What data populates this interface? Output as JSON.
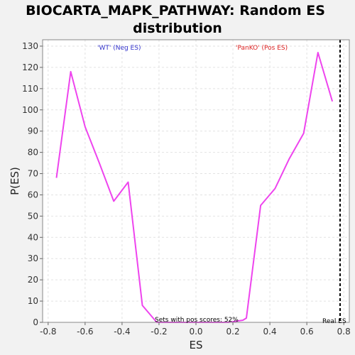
{
  "chart_data": {
    "type": "line",
    "title_line1": "BIOCARTA_MAPK_PATHWAY: Random ES",
    "title_line2": "distribution",
    "xlabel": "ES",
    "ylabel": "P(ES)",
    "xlim": [
      -0.83,
      0.83
    ],
    "ylim": [
      0,
      133
    ],
    "x_ticks": [
      -0.8,
      -0.6,
      -0.4,
      -0.2,
      0.0,
      0.2,
      0.4,
      0.6,
      0.8
    ],
    "x_tick_labels": [
      "-0.8",
      "-0.6",
      "-0.4",
      "-0.2",
      "0.0",
      "0.2",
      "0.4",
      "0.6",
      "0.8"
    ],
    "y_ticks": [
      0,
      10,
      20,
      30,
      40,
      50,
      60,
      70,
      80,
      90,
      100,
      110,
      120,
      130
    ],
    "grid": true,
    "series": [
      {
        "color": "#ee44ee",
        "x": [
          -0.755,
          -0.678,
          -0.6,
          -0.523,
          -0.445,
          -0.367,
          -0.29,
          -0.212,
          -0.135,
          -0.057,
          0.021,
          0.098,
          0.176,
          0.254,
          0.273,
          0.35,
          0.428,
          0.505,
          0.583,
          0.66,
          0.738
        ],
        "y": [
          68,
          118,
          92,
          75,
          57,
          66,
          8,
          0,
          0,
          0,
          0,
          0,
          0,
          1,
          2,
          55,
          63,
          77,
          89,
          127,
          104
        ]
      }
    ],
    "annotations": {
      "neg_label": "'WT' (Neg ES)",
      "pos_label": "'PanKO' (Pos ES)",
      "neg_color": "#3333cc",
      "pos_color": "#dd2222",
      "pos_scores": "Sets with pos scores: 52%",
      "real_es_label": "Real ES",
      "real_es_value": 0.78
    }
  }
}
